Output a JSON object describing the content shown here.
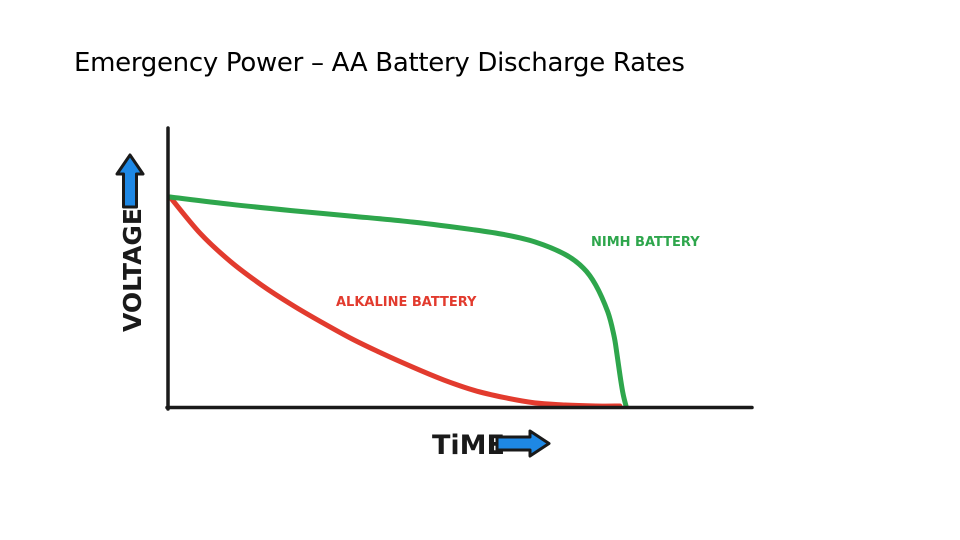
{
  "slide": {
    "title": "Emergency Power – AA Battery Discharge Rates"
  },
  "colors": {
    "nimh": "#2ea64c",
    "alkaline": "#e23b2e",
    "axis": "#1a1a1a",
    "arrow_fill": "#1e88e5",
    "arrow_stroke": "#1a1a1a"
  },
  "icons": {
    "y_arrow": "arrow-up-icon",
    "x_arrow": "arrow-right-icon"
  },
  "chart_data": {
    "type": "line",
    "title": "",
    "xlabel": "TiME",
    "ylabel": "VOLTAGE",
    "grid": false,
    "xlim": [
      0,
      100
    ],
    "ylim": [
      0,
      100
    ],
    "series": [
      {
        "name": "NIMH BATTERY",
        "color": "#2ea64c",
        "x": [
          0,
          10,
          20,
          30,
          40,
          50,
          55,
          60,
          65,
          68,
          70,
          72,
          73,
          73.5,
          74,
          74.5,
          75
        ],
        "y": [
          100,
          96.5,
          93.5,
          90.8,
          88,
          84.3,
          82,
          78.5,
          72.5,
          66,
          58,
          45,
          34,
          25,
          15,
          6,
          0
        ]
      },
      {
        "name": "ALKALINE BATTERY",
        "color": "#e23b2e",
        "x": [
          0,
          5,
          10,
          15,
          20,
          25,
          30,
          35,
          40,
          45,
          50,
          55,
          60,
          65,
          70,
          74
        ],
        "y": [
          100,
          82.5,
          69,
          58,
          48.5,
          40,
          32,
          25,
          18.5,
          12.5,
          7.5,
          4,
          1.5,
          0.5,
          0,
          0
        ]
      }
    ]
  }
}
